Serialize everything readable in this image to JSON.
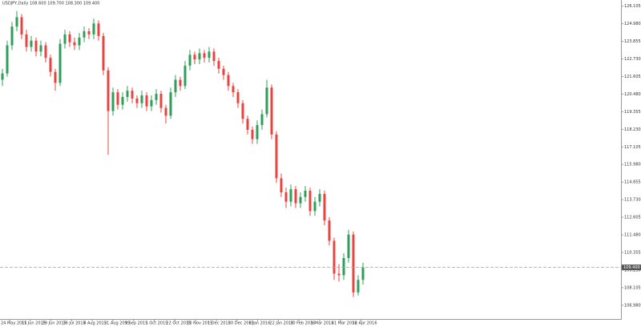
{
  "chart_data": {
    "type": "candlestick",
    "title": "USDJPY,Daily  108.600 109.700 108.300 109.400",
    "x_labels": [
      "24 May 2015",
      "11 Jun 2015",
      "29 Jun 2015",
      "16 Jul 2015",
      "4 Aug 2015",
      "21 Aug 2015",
      "9 Sep 2015",
      "1 Oct 2015",
      "22 Oct 2015",
      "10 Nov 2015",
      "1 Dec 2015",
      "20 Dec 2015",
      "6 Jan 2016",
      "22 Jan 2016",
      "10 Feb 2016",
      "1 Mar 2016",
      "21 Mar 2016",
      "12 Apr 2016"
    ],
    "open": [
      121.4,
      121.8,
      123.6,
      124.8,
      125.4,
      124.3,
      123.5,
      123.9,
      123.2,
      123.6,
      122.8,
      121.9,
      121.2,
      123.7,
      124.3,
      123.8,
      123.6,
      124.1,
      124.5,
      124.3,
      125.0,
      124.2,
      122.0,
      119.4,
      120.6,
      119.8,
      120.3,
      120.7,
      120.2,
      119.9,
      120.4,
      119.7,
      120.1,
      120.5,
      119.6,
      119.1,
      120.6,
      121.4,
      121.0,
      122.3,
      123.0,
      122.7,
      123.1,
      122.8,
      123.2,
      122.6,
      122.1,
      121.7,
      121.0,
      120.6,
      119.9,
      118.9,
      118.2,
      117.6,
      118.5,
      119.2,
      120.9,
      117.9,
      115.1,
      114.2,
      113.6,
      114.4,
      113.5,
      113.9,
      114.3,
      113.0,
      113.6,
      114.1,
      112.4,
      111.1,
      109.0,
      108.9,
      110.0,
      111.5,
      107.8,
      108.6
    ],
    "high": [
      122.1,
      123.9,
      125.1,
      125.8,
      125.6,
      124.6,
      124.2,
      124.1,
      123.9,
      123.8,
      123.0,
      122.1,
      124.0,
      124.6,
      124.5,
      124.1,
      124.4,
      124.8,
      124.7,
      125.3,
      125.2,
      124.4,
      122.2,
      120.9,
      120.8,
      120.6,
      121.0,
      120.9,
      120.4,
      120.7,
      120.6,
      120.4,
      120.8,
      120.7,
      119.8,
      120.9,
      121.7,
      121.6,
      122.6,
      123.3,
      123.2,
      123.4,
      123.3,
      123.5,
      123.4,
      122.8,
      122.3,
      121.9,
      121.2,
      120.8,
      120.1,
      119.1,
      118.4,
      118.8,
      119.5,
      121.4,
      121.1,
      118.1,
      115.4,
      114.5,
      114.7,
      114.6,
      114.2,
      114.6,
      114.5,
      113.9,
      114.4,
      114.3,
      112.6,
      111.3,
      109.6,
      110.3,
      111.8,
      111.7,
      108.9,
      109.7
    ],
    "low": [
      121.0,
      121.6,
      123.3,
      124.5,
      124.0,
      123.2,
      123.2,
      122.9,
      122.9,
      122.5,
      121.6,
      120.7,
      121.0,
      123.4,
      123.5,
      123.3,
      123.3,
      123.8,
      124.0,
      124.0,
      123.9,
      121.7,
      116.6,
      119.1,
      119.5,
      119.5,
      120.0,
      119.9,
      119.6,
      119.6,
      119.4,
      119.4,
      119.8,
      119.3,
      118.6,
      118.9,
      120.3,
      120.7,
      120.8,
      122.0,
      122.4,
      122.4,
      122.5,
      122.5,
      122.3,
      121.8,
      121.4,
      120.7,
      120.3,
      119.6,
      118.6,
      117.9,
      117.3,
      117.3,
      118.2,
      119.0,
      117.6,
      114.8,
      113.9,
      113.2,
      113.3,
      113.2,
      113.2,
      113.6,
      112.7,
      112.7,
      113.3,
      112.1,
      110.8,
      108.6,
      108.5,
      108.6,
      109.7,
      107.5,
      107.6,
      108.3
    ],
    "close": [
      121.8,
      123.6,
      124.8,
      125.4,
      124.3,
      123.5,
      123.9,
      123.2,
      123.6,
      122.8,
      121.9,
      121.2,
      123.7,
      124.3,
      123.8,
      123.6,
      124.1,
      124.5,
      124.3,
      125.0,
      124.2,
      122.0,
      119.4,
      120.6,
      119.8,
      120.3,
      120.7,
      120.2,
      119.9,
      120.4,
      119.7,
      120.1,
      120.5,
      119.6,
      119.1,
      120.6,
      121.4,
      121.0,
      122.3,
      123.0,
      122.7,
      123.1,
      122.8,
      123.2,
      122.6,
      122.1,
      121.7,
      121.0,
      120.6,
      119.9,
      118.9,
      118.2,
      117.6,
      118.5,
      119.2,
      120.9,
      117.9,
      115.1,
      114.2,
      113.6,
      114.4,
      113.5,
      113.9,
      114.3,
      113.0,
      113.6,
      114.1,
      112.4,
      111.1,
      109.0,
      108.9,
      110.0,
      111.5,
      107.8,
      108.6,
      109.4
    ],
    "up_color": "#2f9e5a",
    "down_color": "#e8433f",
    "ylim": [
      106.1,
      126.5
    ],
    "yticks": [
      126.105,
      {
        "value": 124.98,
        "label": "124.980"
      },
      123.855,
      {
        "value": 122.73,
        "label": "122.730"
      },
      121.605,
      {
        "value": 120.48,
        "label": "120.480"
      },
      119.355,
      {
        "value": 118.23,
        "label": "118.230"
      },
      117.105,
      {
        "value": 115.98,
        "label": "115.980"
      },
      114.855,
      {
        "value": 113.73,
        "label": "113.730"
      },
      112.605,
      {
        "value": 111.48,
        "label": "111.480"
      },
      110.355,
      {
        "value": 109.23,
        "label": "109.230"
      },
      108.105,
      {
        "value": 106.98,
        "label": "106.980"
      }
    ],
    "price_line": {
      "value": 109.4,
      "label": "109.400"
    }
  }
}
